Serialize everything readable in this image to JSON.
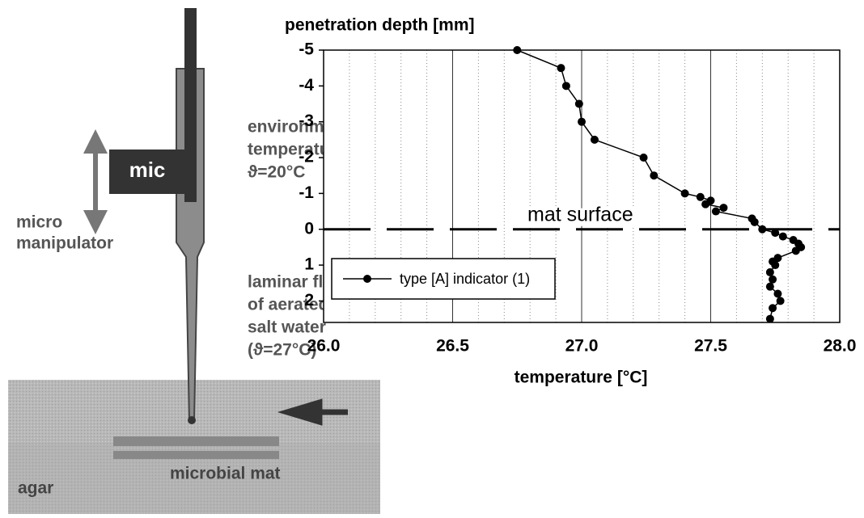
{
  "diagram": {
    "environment": [
      "environmenta",
      "temperature:",
      "ϑ=20°C"
    ],
    "mic": "mic",
    "manipulator": [
      "micro",
      "manipulator"
    ],
    "flow": [
      "laminar flow",
      "of aerated",
      "salt water",
      "(ϑ=27°C)"
    ],
    "mat": "microbial mat",
    "agar": "agar"
  },
  "chart_data": {
    "type": "line",
    "ylabel": "penetration depth [mm]",
    "xlabel": "temperature [°C]",
    "xlim": [
      26,
      28
    ],
    "xticks": [
      {
        "value": 26,
        "label": "26.0"
      },
      {
        "value": 26.5,
        "label": "26.5"
      },
      {
        "value": 27,
        "label": "27.0"
      },
      {
        "value": 27.5,
        "label": "27.5"
      },
      {
        "value": 28,
        "label": "28.0"
      }
    ],
    "x_minor_step": 0.1,
    "ylim": [
      -5,
      2.6
    ],
    "y_reversed": true,
    "yticks": [
      -5,
      -4,
      -3,
      -2,
      -1,
      0,
      1,
      2
    ],
    "grid": true,
    "annotations": [
      {
        "text": "mat surface",
        "y": 0
      }
    ],
    "legend": "bottom-left",
    "series": [
      {
        "name": "type [A] indicator (1)",
        "color": "#000000",
        "x": [
          26.75,
          26.92,
          26.94,
          26.99,
          27.0,
          27.05,
          27.24,
          27.28,
          27.4,
          27.46,
          27.5,
          27.48,
          27.55,
          27.52,
          27.66,
          27.67,
          27.7,
          27.75,
          27.78,
          27.82,
          27.84,
          27.85,
          27.83,
          27.76,
          27.74,
          27.75,
          27.73,
          27.74,
          27.73,
          27.76,
          27.77,
          27.74,
          27.73
        ],
        "y": [
          -5,
          -4.5,
          -4,
          -3.5,
          -3,
          -2.5,
          -2,
          -1.5,
          -1,
          -0.9,
          -0.8,
          -0.7,
          -0.6,
          -0.5,
          -0.3,
          -0.2,
          0,
          0.1,
          0.2,
          0.3,
          0.4,
          0.5,
          0.6,
          0.8,
          0.9,
          1.0,
          1.2,
          1.4,
          1.6,
          1.8,
          2.0,
          2.2,
          2.5
        ]
      }
    ]
  }
}
